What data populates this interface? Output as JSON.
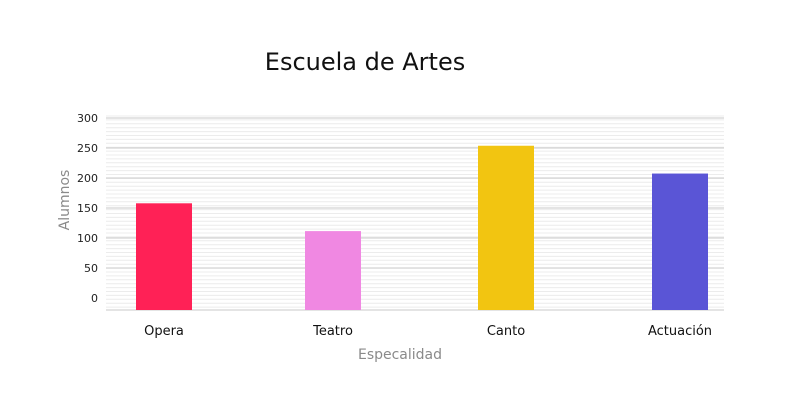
{
  "chart_data": {
    "type": "bar",
    "title": "Escuela de Artes",
    "xlabel": "Especalidad",
    "ylabel": "Alumnos",
    "categories": [
      "Opera",
      "Teatro",
      "Canto",
      "Actuación"
    ],
    "values": [
      165,
      122,
      254,
      211
    ],
    "colors": [
      "#ff2156",
      "#f088e2",
      "#f2c511",
      "#5a55d6"
    ],
    "ylim": [
      0,
      300
    ],
    "yticks": [
      0,
      50,
      100,
      150,
      200,
      250,
      300
    ],
    "grid": true,
    "minor_grid": true
  }
}
